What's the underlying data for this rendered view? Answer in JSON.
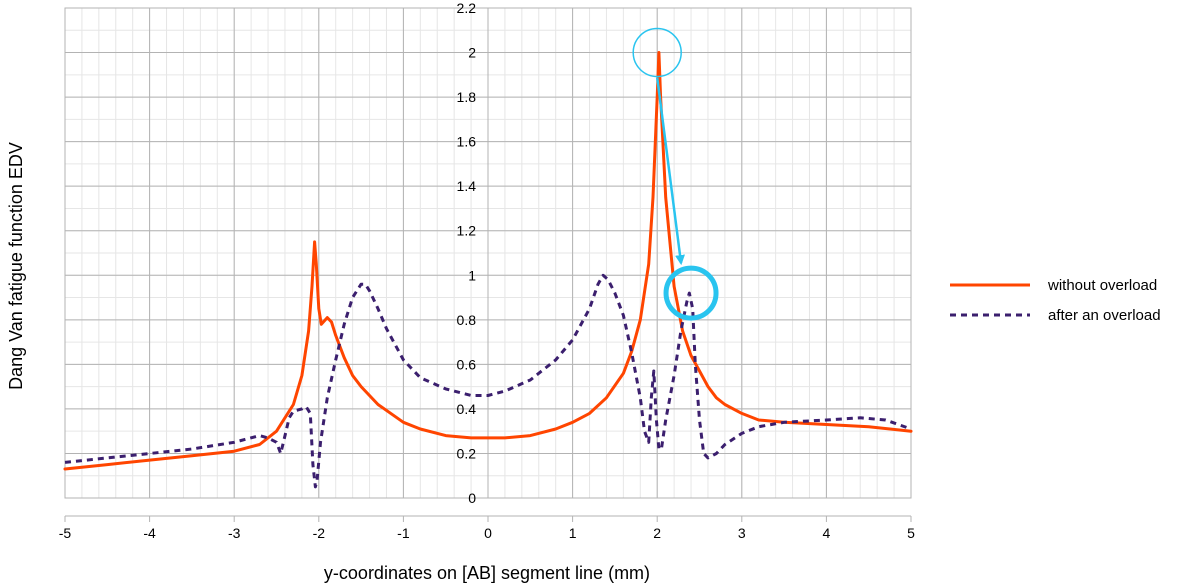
{
  "chart_data": {
    "type": "line",
    "title": "",
    "xlabel": "y-coordinates on [AB] segment line (mm)",
    "ylabel": "Dang Van fatigue function EDV",
    "xlim": [
      -5,
      5
    ],
    "ylim": [
      0,
      2.2
    ],
    "xticks": [
      "-5",
      "-4",
      "-3",
      "-2",
      "-1",
      "0",
      "1",
      "2",
      "3",
      "4",
      "5"
    ],
    "yticks": [
      "0",
      "0.2",
      "0.4",
      "0.6",
      "0.8",
      "1",
      "1.2",
      "1.4",
      "1.6",
      "1.8",
      "2",
      "2.2"
    ],
    "grid": true,
    "legend_position": "right",
    "series": [
      {
        "name": "without overload",
        "color": "#ff4500",
        "style": "solid",
        "points": [
          [
            -5,
            0.13
          ],
          [
            -4.5,
            0.15
          ],
          [
            -4,
            0.17
          ],
          [
            -3.5,
            0.19
          ],
          [
            -3,
            0.21
          ],
          [
            -2.7,
            0.24
          ],
          [
            -2.5,
            0.3
          ],
          [
            -2.3,
            0.42
          ],
          [
            -2.2,
            0.55
          ],
          [
            -2.12,
            0.75
          ],
          [
            -2.08,
            0.95
          ],
          [
            -2.05,
            1.15
          ],
          [
            -2.03,
            1.05
          ],
          [
            -2.0,
            0.85
          ],
          [
            -1.97,
            0.78
          ],
          [
            -1.9,
            0.81
          ],
          [
            -1.85,
            0.79
          ],
          [
            -1.8,
            0.73
          ],
          [
            -1.7,
            0.63
          ],
          [
            -1.6,
            0.55
          ],
          [
            -1.5,
            0.5
          ],
          [
            -1.3,
            0.42
          ],
          [
            -1.0,
            0.34
          ],
          [
            -0.8,
            0.31
          ],
          [
            -0.5,
            0.28
          ],
          [
            -0.2,
            0.27
          ],
          [
            0,
            0.27
          ],
          [
            0.2,
            0.27
          ],
          [
            0.5,
            0.28
          ],
          [
            0.8,
            0.31
          ],
          [
            1.0,
            0.34
          ],
          [
            1.2,
            0.38
          ],
          [
            1.4,
            0.45
          ],
          [
            1.6,
            0.56
          ],
          [
            1.7,
            0.66
          ],
          [
            1.8,
            0.8
          ],
          [
            1.9,
            1.05
          ],
          [
            1.95,
            1.35
          ],
          [
            2.0,
            1.8
          ],
          [
            2.02,
            2.0
          ],
          [
            2.04,
            1.8
          ],
          [
            2.1,
            1.35
          ],
          [
            2.2,
            0.95
          ],
          [
            2.3,
            0.75
          ],
          [
            2.4,
            0.64
          ],
          [
            2.5,
            0.57
          ],
          [
            2.6,
            0.5
          ],
          [
            2.7,
            0.45
          ],
          [
            2.8,
            0.42
          ],
          [
            3.0,
            0.38
          ],
          [
            3.2,
            0.35
          ],
          [
            3.5,
            0.34
          ],
          [
            4.0,
            0.33
          ],
          [
            4.5,
            0.32
          ],
          [
            5.0,
            0.3
          ]
        ]
      },
      {
        "name": "after an overload",
        "color": "#3b1f6e",
        "style": "dashed",
        "points": [
          [
            -5,
            0.16
          ],
          [
            -4.5,
            0.18
          ],
          [
            -4,
            0.2
          ],
          [
            -3.5,
            0.22
          ],
          [
            -3,
            0.25
          ],
          [
            -2.7,
            0.28
          ],
          [
            -2.6,
            0.27
          ],
          [
            -2.5,
            0.25
          ],
          [
            -2.45,
            0.2
          ],
          [
            -2.4,
            0.28
          ],
          [
            -2.35,
            0.36
          ],
          [
            -2.3,
            0.39
          ],
          [
            -2.2,
            0.4
          ],
          [
            -2.15,
            0.41
          ],
          [
            -2.1,
            0.38
          ],
          [
            -2.07,
            0.15
          ],
          [
            -2.04,
            0.05
          ],
          [
            -2.02,
            0.08
          ],
          [
            -1.98,
            0.25
          ],
          [
            -1.9,
            0.45
          ],
          [
            -1.8,
            0.62
          ],
          [
            -1.7,
            0.78
          ],
          [
            -1.6,
            0.9
          ],
          [
            -1.5,
            0.96
          ],
          [
            -1.45,
            0.96
          ],
          [
            -1.4,
            0.93
          ],
          [
            -1.3,
            0.85
          ],
          [
            -1.2,
            0.76
          ],
          [
            -1.0,
            0.62
          ],
          [
            -0.8,
            0.54
          ],
          [
            -0.5,
            0.49
          ],
          [
            -0.2,
            0.46
          ],
          [
            0,
            0.46
          ],
          [
            0.2,
            0.48
          ],
          [
            0.5,
            0.53
          ],
          [
            0.8,
            0.62
          ],
          [
            1.0,
            0.71
          ],
          [
            1.2,
            0.85
          ],
          [
            1.3,
            0.96
          ],
          [
            1.36,
            1.0
          ],
          [
            1.42,
            0.98
          ],
          [
            1.5,
            0.92
          ],
          [
            1.6,
            0.82
          ],
          [
            1.7,
            0.65
          ],
          [
            1.8,
            0.45
          ],
          [
            1.85,
            0.3
          ],
          [
            1.9,
            0.25
          ],
          [
            1.93,
            0.45
          ],
          [
            1.96,
            0.57
          ],
          [
            1.99,
            0.35
          ],
          [
            2.02,
            0.22
          ],
          [
            2.05,
            0.22
          ],
          [
            2.1,
            0.35
          ],
          [
            2.15,
            0.45
          ],
          [
            2.2,
            0.55
          ],
          [
            2.28,
            0.75
          ],
          [
            2.35,
            0.88
          ],
          [
            2.38,
            0.92
          ],
          [
            2.42,
            0.85
          ],
          [
            2.45,
            0.6
          ],
          [
            2.5,
            0.35
          ],
          [
            2.55,
            0.2
          ],
          [
            2.6,
            0.18
          ],
          [
            2.7,
            0.2
          ],
          [
            2.8,
            0.24
          ],
          [
            3.0,
            0.29
          ],
          [
            3.2,
            0.32
          ],
          [
            3.5,
            0.34
          ],
          [
            4.0,
            0.35
          ],
          [
            4.4,
            0.36
          ],
          [
            4.7,
            0.35
          ],
          [
            5.0,
            0.31
          ]
        ]
      }
    ],
    "annotations": {
      "color": "#29c4ef",
      "from_circle": [
        2.0,
        2.0
      ],
      "to_circle": [
        2.4,
        0.92
      ]
    }
  }
}
